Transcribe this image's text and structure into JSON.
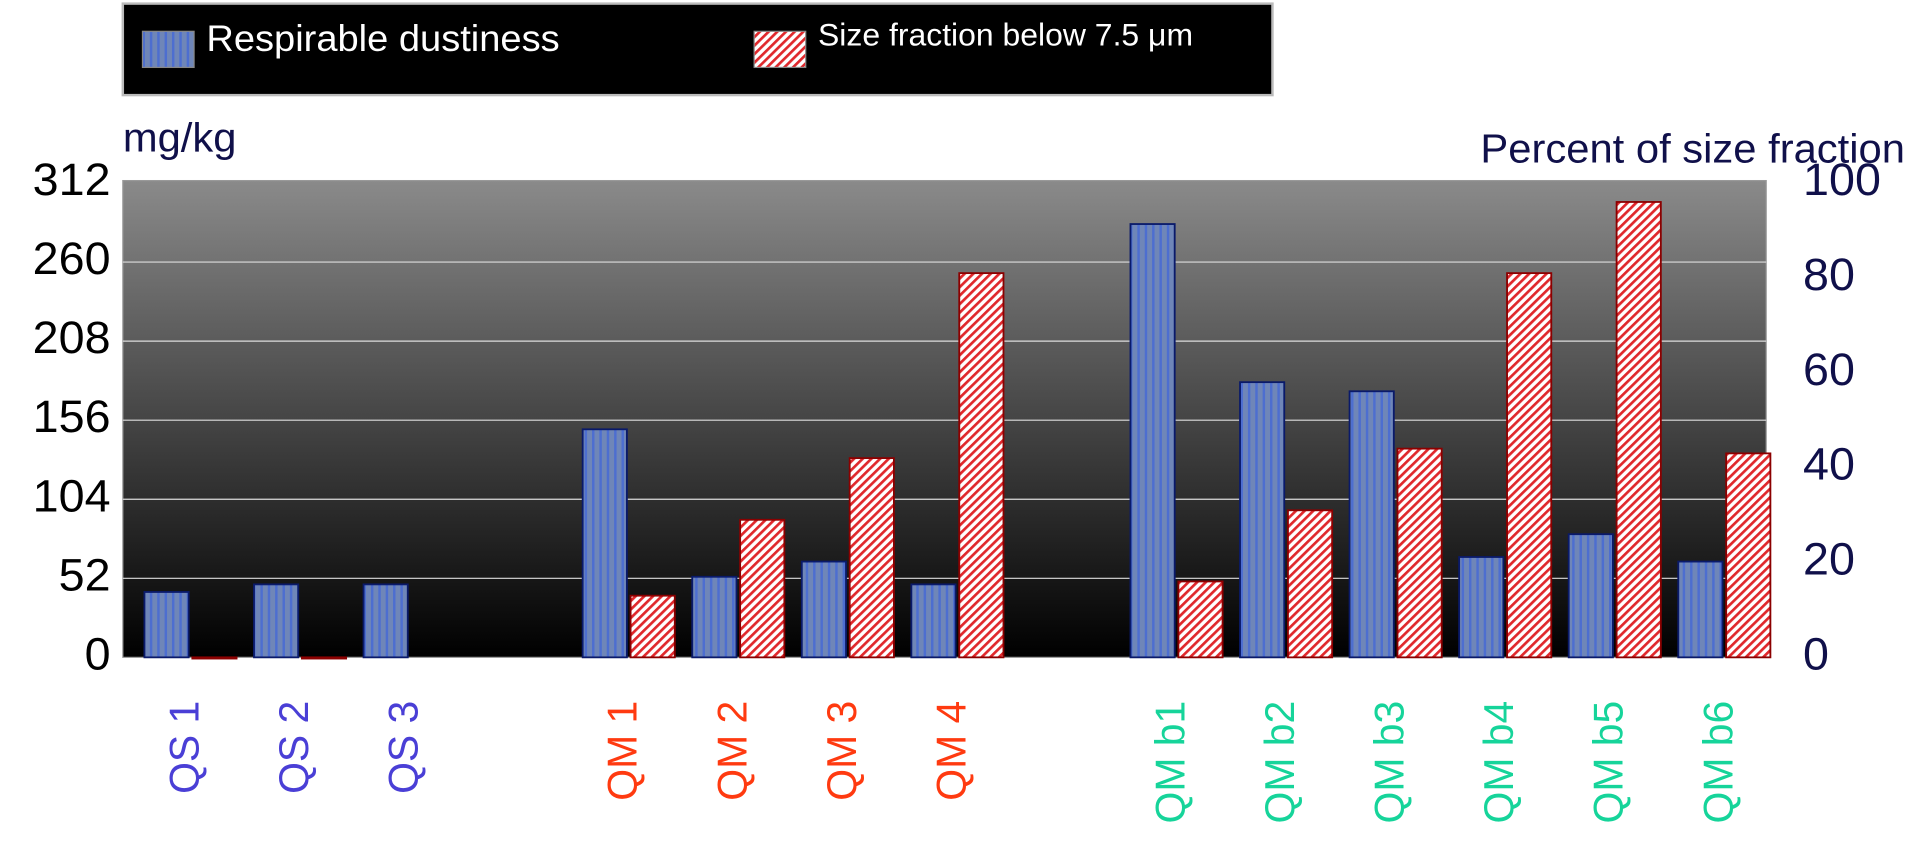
{
  "chart_data": {
    "type": "bar",
    "categories": [
      "QS 1",
      "QS 2",
      "QS 3",
      null,
      "QM 1",
      "QM 2",
      "QM 3",
      "QM 4",
      null,
      "QM b1",
      "QM b2",
      "QM b3",
      "QM b4",
      "QM b5",
      "QM b6"
    ],
    "category_colors": [
      "#4a3fd6",
      "#4a3fd6",
      "#4a3fd6",
      null,
      "#ff3a10",
      "#ff3a10",
      "#ff3a10",
      "#ff3a10",
      null,
      "#16d49a",
      "#16d49a",
      "#16d49a",
      "#16d49a",
      "#16d49a",
      "#16d49a"
    ],
    "series": [
      {
        "name": "Respirable dustiness",
        "color": "#6f86b8",
        "values": [
          43,
          48,
          48,
          null,
          150,
          53,
          63,
          48,
          null,
          285,
          181,
          175,
          66,
          81,
          63
        ]
      },
      {
        "name": "Size fraction below 7.5 μm",
        "color": "#e0282c",
        "axis": "y2",
        "values": [
          0,
          0,
          null,
          null,
          13,
          29,
          42,
          81,
          null,
          16,
          31,
          44,
          81,
          96,
          43
        ]
      }
    ],
    "ylabel": "mg/kg",
    "y2label": "Percent of size fraction",
    "ylim": [
      0,
      312
    ],
    "yticks": [
      0,
      52,
      104,
      156,
      208,
      260,
      312
    ],
    "y2lim": [
      0,
      100
    ],
    "y2ticks": [
      0,
      20,
      40,
      60,
      80,
      100
    ],
    "grid": true,
    "legend": "top"
  }
}
